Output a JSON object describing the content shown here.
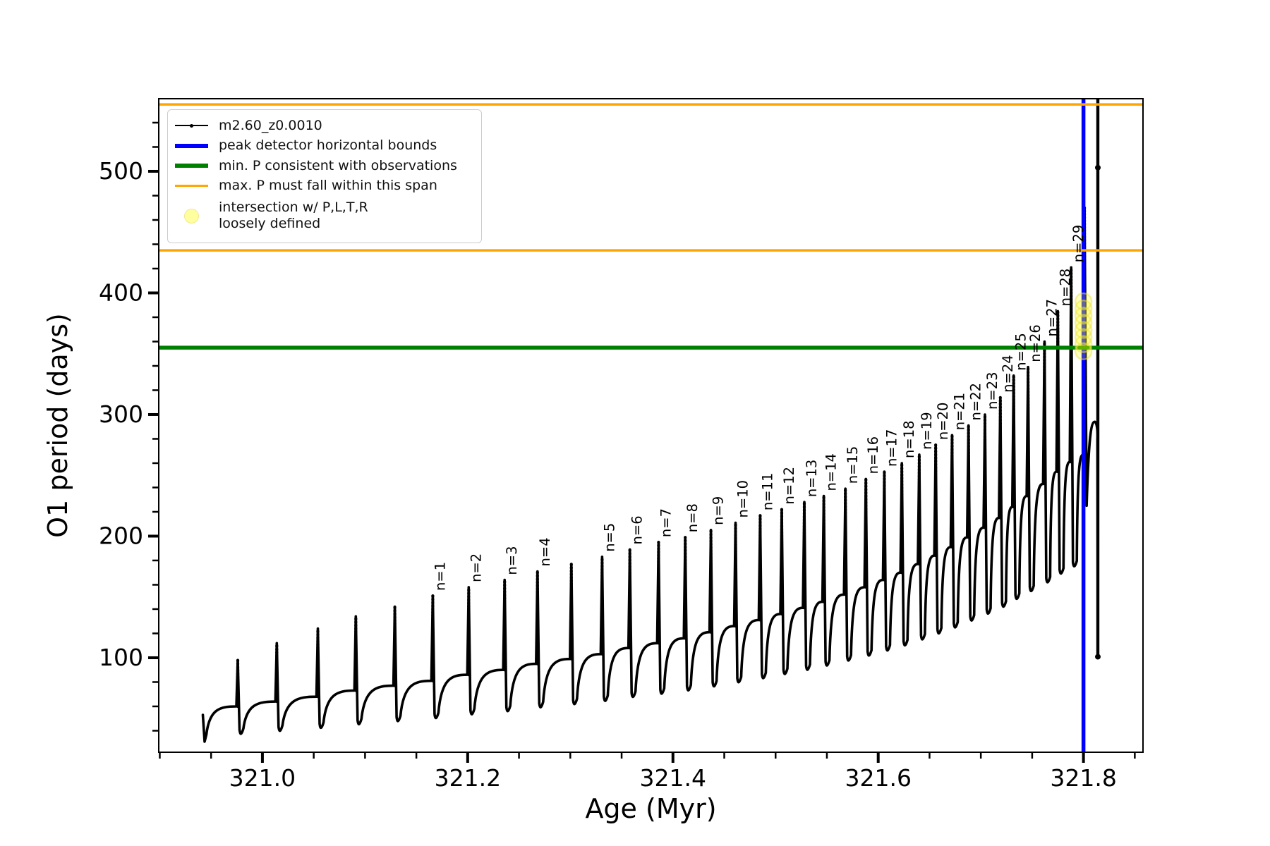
{
  "figure_type": "matplotlib-line-plot",
  "axes": {
    "xlabel": "Age (Myr)",
    "ylabel": "O1 period (days)",
    "x_tick_labels": [
      "321.0",
      "321.2",
      "321.4",
      "321.6",
      "321.8"
    ],
    "y_tick_labels": [
      "100",
      "200",
      "300",
      "400",
      "500"
    ]
  },
  "legend": {
    "entries": [
      {
        "label": "m2.60_z0.0010",
        "swatch": "black-line-with-dot-marker",
        "color": "#000000"
      },
      {
        "label": "peak detector horizontal bounds",
        "swatch": "thick-line",
        "color": "#0000ff"
      },
      {
        "label": "min. P consistent with observations",
        "swatch": "thick-line",
        "color": "#008000"
      },
      {
        "label": "max. P must fall within this span",
        "swatch": "line",
        "color": "#ffa500"
      },
      {
        "label": "intersection w/ P,L,T,R\nloosely defined",
        "swatch": "pale-yellow-circle",
        "color": "#ffff99"
      }
    ]
  },
  "chart_data": {
    "type": "line",
    "title": "",
    "xlabel": "Age (Myr)",
    "ylabel": "O1 period (days)",
    "xlim": [
      320.899,
      321.858
    ],
    "ylim": [
      22.3,
      559.7
    ],
    "x_ticks": [
      321.0,
      321.2,
      321.4,
      321.6,
      321.8
    ],
    "x_minor_step": 0.05,
    "y_ticks": [
      100,
      200,
      300,
      400,
      500
    ],
    "y_minor_step": 20,
    "grid": false,
    "legend_position": "upper left",
    "series_name": "m2.60_z0.0010",
    "series_style": "black solid line with tiny dot markers; sawtooth thermal-pulse spikes",
    "curve_start": {
      "age": 320.942,
      "period": 53,
      "dip": 31
    },
    "peaks": [
      {
        "n": null,
        "age": 320.976,
        "period": 98,
        "base": 60
      },
      {
        "n": null,
        "age": 321.014,
        "period": 112,
        "base": 64
      },
      {
        "n": null,
        "age": 321.054,
        "period": 124,
        "base": 68
      },
      {
        "n": null,
        "age": 321.091,
        "period": 134,
        "base": 73
      },
      {
        "n": null,
        "age": 321.129,
        "period": 142,
        "base": 77
      },
      {
        "n": "n=1",
        "age": 321.166,
        "period": 151,
        "base": 81
      },
      {
        "n": "n=2",
        "age": 321.201,
        "period": 158,
        "base": 86
      },
      {
        "n": "n=3",
        "age": 321.236,
        "period": 164,
        "base": 90
      },
      {
        "n": "n=4",
        "age": 321.268,
        "period": 171,
        "base": 95
      },
      {
        "n": null,
        "age": 321.301,
        "period": 177,
        "base": 99
      },
      {
        "n": "n=5",
        "age": 321.331,
        "period": 183,
        "base": 103
      },
      {
        "n": "n=6",
        "age": 321.358,
        "period": 189,
        "base": 108
      },
      {
        "n": "n=7",
        "age": 321.386,
        "period": 195,
        "base": 112
      },
      {
        "n": "n=8",
        "age": 321.412,
        "period": 199,
        "base": 116
      },
      {
        "n": "n=9",
        "age": 321.437,
        "period": 205,
        "base": 121
      },
      {
        "n": "n=10",
        "age": 321.461,
        "period": 211,
        "base": 126
      },
      {
        "n": "n=11",
        "age": 321.485,
        "period": 217,
        "base": 131
      },
      {
        "n": "n=12",
        "age": 321.506,
        "period": 222,
        "base": 136
      },
      {
        "n": "n=13",
        "age": 321.528,
        "period": 228,
        "base": 141
      },
      {
        "n": "n=14",
        "age": 321.547,
        "period": 233,
        "base": 146
      },
      {
        "n": "n=15",
        "age": 321.568,
        "period": 239,
        "base": 152
      },
      {
        "n": "n=16",
        "age": 321.588,
        "period": 247,
        "base": 158
      },
      {
        "n": "n=17",
        "age": 321.606,
        "period": 253,
        "base": 164
      },
      {
        "n": "n=18",
        "age": 321.623,
        "period": 260,
        "base": 170
      },
      {
        "n": "n=19",
        "age": 321.64,
        "period": 267,
        "base": 177
      },
      {
        "n": "n=20",
        "age": 321.656,
        "period": 275,
        "base": 184
      },
      {
        "n": "n=21",
        "age": 321.672,
        "period": 283,
        "base": 191
      },
      {
        "n": "n=22",
        "age": 321.688,
        "period": 291,
        "base": 199
      },
      {
        "n": "n=23",
        "age": 321.704,
        "period": 300,
        "base": 207
      },
      {
        "n": "n=24",
        "age": 321.719,
        "period": 314,
        "base": 215
      },
      {
        "n": "n=25",
        "age": 321.732,
        "period": 332,
        "base": 224
      },
      {
        "n": "n=26",
        "age": 321.746,
        "period": 339,
        "base": 233
      },
      {
        "n": "n=27",
        "age": 321.762,
        "period": 360,
        "base": 243
      },
      {
        "n": "n=28",
        "age": 321.775,
        "period": 385,
        "base": 253
      },
      {
        "n": "n=29",
        "age": 321.788,
        "period": 421,
        "base": 261
      },
      {
        "n": null,
        "age": 321.801,
        "period": 470,
        "base": 267
      }
    ],
    "final_pulse": {
      "hump": {
        "age": 321.811,
        "period": 294
      },
      "crash_age": 321.814,
      "crash_top_period": 560,
      "crash_dot_period": 503,
      "crash_bottom_period": 102
    },
    "annotations": {
      "blue_vline_age": 321.8,
      "green_hline_period": 355,
      "orange_hline_periods": [
        435,
        555
      ],
      "yellow_intersection": {
        "age": 321.8,
        "period_range": [
          352,
          393
        ],
        "marker_count": 8
      }
    },
    "colors": {
      "series": "#000000",
      "peak_detector": "#0000ff",
      "min_p": "#008000",
      "max_p_span": "#ffa500",
      "intersection": "#ffff00"
    }
  }
}
